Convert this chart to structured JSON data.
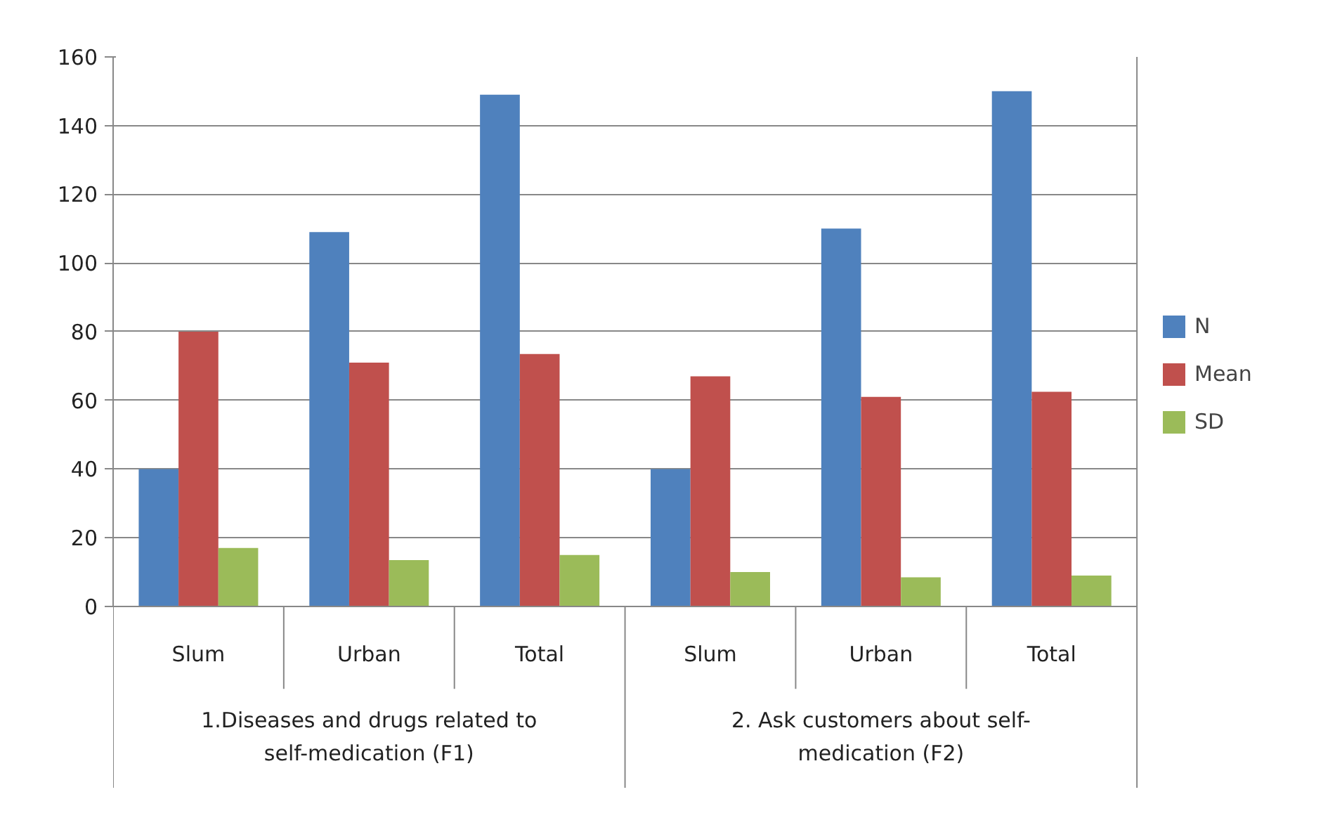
{
  "chart_data": {
    "type": "bar",
    "categories": [
      "Slum",
      "Urban",
      "Total",
      "Slum",
      "Urban",
      "Total"
    ],
    "series": [
      {
        "name": "N",
        "color": "#4f81bd",
        "values": [
          40,
          109,
          149,
          40,
          110,
          150
        ]
      },
      {
        "name": "Mean",
        "color": "#c0504d",
        "values": [
          80,
          71,
          73.5,
          67,
          61,
          62.5
        ]
      },
      {
        "name": "SD",
        "color": "#9bbb59",
        "values": [
          17,
          13.5,
          15,
          10,
          8.5,
          9
        ]
      }
    ],
    "ylim": [
      0,
      160
    ],
    "yticks": [
      0,
      20,
      40,
      60,
      80,
      100,
      120,
      140,
      160
    ],
    "grid": "y",
    "legend": "right",
    "annotations": [
      "1.Diseases and drugs related to self-medication (F1)",
      "2. Ask customers about self-medication (F2)"
    ]
  }
}
